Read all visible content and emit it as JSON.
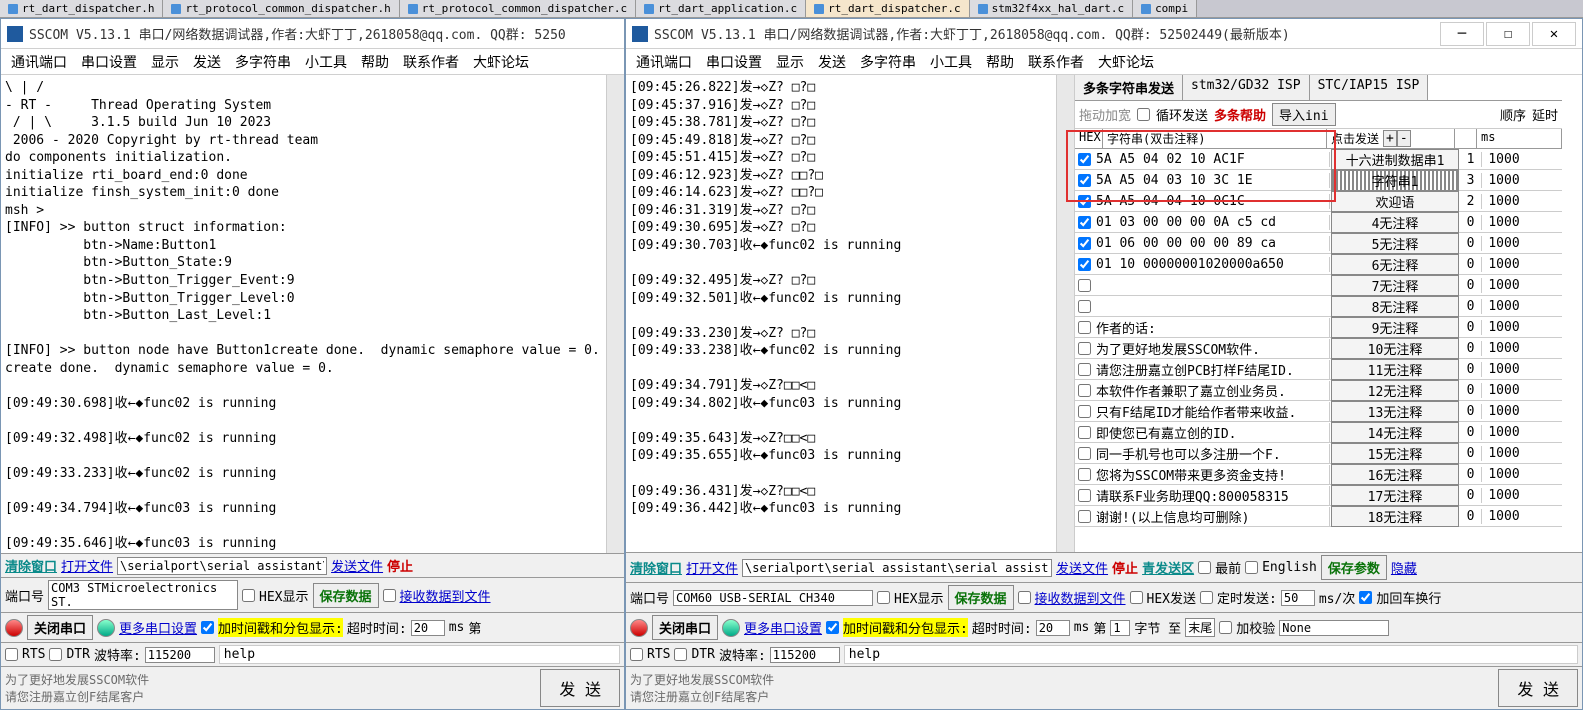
{
  "tabs": [
    "rt_dart_dispatcher.h",
    "rt_protocol_common_dispatcher.h",
    "rt_protocol_common_dispatcher.c",
    "rt_dart_application.c",
    "rt_dart_dispatcher.c",
    "stm32f4xx_hal_dart.c",
    "compi"
  ],
  "tabs_active_idx": 4,
  "win_left": {
    "title": "SSCOM V5.13.1 串口/网络数据调试器,作者:大虾丁丁,2618058@qq.com. QQ群: 5250",
    "menu": [
      "通讯端口",
      "串口设置",
      "显示",
      "发送",
      "多字符串",
      "小工具",
      "帮助",
      "联系作者",
      "大虾论坛"
    ],
    "console": "\\ | /\n- RT -     Thread Operating System\n / | \\     3.1.5 build Jun 10 2023\n 2006 - 2020 Copyright by rt-thread team\ndo components initialization.\ninitialize rti_board_end:0 done\ninitialize finsh_system_init:0 done\nmsh >\n[INFO] >> button struct information:\n          btn->Name:Button1\n          btn->Button_State:9\n          btn->Button_Trigger_Event:9\n          btn->Button_Trigger_Level:0\n          btn->Button_Last_Level:1\n\n[INFO] >> button node have Button1create done.  dynamic semaphore value = 0.\ncreate done.  dynamic semaphore value = 0.\n\n[09:49:30.698]收←◆func02 is running\n\n[09:49:32.498]收←◆func02 is running\n\n[09:49:33.233]收←◆func02 is running\n\n[09:49:34.794]收←◆func03 is running\n\n[09:49:35.646]收←◆func03 is running\n\n[09:49:36.436]收←◆func03 is running",
    "clear": "清除窗口",
    "open": "打开文件",
    "path": "\\serialport\\serial assistant\\serial assist",
    "sendfile": "发送文件",
    "stop": "停止",
    "port_lbl": "端口号",
    "port_val": "COM3 STMicroelectronics ST.",
    "hex_disp": "HEX显示",
    "save_data": "保存数据",
    "recv_file": "接收数据到文件",
    "close_port": "关闭串口",
    "more_port": "更多串口设置",
    "timestamp": "加时间戳和分包显示:",
    "timeout_lbl": "超时时间:",
    "timeout": "20",
    "ms": "ms",
    "unit": "第",
    "help": "help",
    "rts": "RTS",
    "dtr": "DTR",
    "baud_lbl": "波特率:",
    "baud": "115200",
    "footer1": "为了更好地发展SSCOM软件",
    "footer2": "请您注册嘉立创F结尾客户",
    "send": "发  送"
  },
  "win_right": {
    "title": "SSCOM V5.13.1 串口/网络数据调试器,作者:大虾丁丁,2618058@qq.com. QQ群: 52502449(最新版本)",
    "menu": [
      "通讯端口",
      "串口设置",
      "显示",
      "发送",
      "多字符串",
      "小工具",
      "帮助",
      "联系作者",
      "大虾论坛"
    ],
    "console": "[09:45:26.822]发→◇Z? □?□\n[09:45:37.916]发→◇Z? □?□\n[09:45:38.781]发→◇Z? □?□\n[09:45:49.818]发→◇Z? □?□\n[09:45:51.415]发→◇Z? □?□\n[09:46:12.923]发→◇Z? □□?□\n[09:46:14.623]发→◇Z? □□?□\n[09:46:31.319]发→◇Z? □?□\n[09:49:30.695]发→◇Z? □?□\n[09:49:30.703]收←◆func02 is running\n\n[09:49:32.495]发→◇Z? □?□\n[09:49:32.501]收←◆func02 is running\n\n[09:49:33.230]发→◇Z? □?□\n[09:49:33.238]收←◆func02 is running\n\n[09:49:34.791]发→◇Z?□□<□\n[09:49:34.802]收←◆func03 is running\n\n[09:49:35.643]发→◇Z?□□<□\n[09:49:35.655]收←◆func03 is running\n\n[09:49:36.431]发→◇Z?□□<□\n[09:49:36.442]收←◆func03 is running",
    "side": {
      "tabs": [
        "多条字符串发送",
        "stm32/GD32 ISP",
        "STC/IAP15 ISP"
      ],
      "drag": "拖动加宽",
      "loop": "循环发送",
      "help": "多条帮助",
      "import": "导入ini",
      "order": "顺序",
      "delay": "延时",
      "hdr_hex": "HEX",
      "hdr_str": "字符串(双击注释)",
      "hdr_click": "点击发送",
      "hdr_ms": "ms",
      "rows": [
        {
          "ck": true,
          "hex": "5A A5 04 02 10  AC1F",
          "note": "十六进制数据串1",
          "seq": "1",
          "ms": "1000"
        },
        {
          "ck": true,
          "hex": "5A A5 04 03 10 3C 1E",
          "note": "字符串1",
          "seq": "3",
          "ms": "1000"
        },
        {
          "ck": true,
          "hex": "5A A5 04 04 10 0C1C",
          "note": "欢迎语",
          "seq": "2",
          "ms": "1000"
        },
        {
          "ck": true,
          "hex": "01 03 00 00 00 0A  c5 cd",
          "note": "4无注释",
          "seq": "0",
          "ms": "1000"
        },
        {
          "ck": true,
          "hex": "01 06 00 00 00 00  89 ca",
          "note": "5无注释",
          "seq": "0",
          "ms": "1000"
        },
        {
          "ck": true,
          "hex": "01 10 00000001020000a650",
          "note": "6无注释",
          "seq": "0",
          "ms": "1000"
        },
        {
          "ck": false,
          "hex": "",
          "note": "7无注释",
          "seq": "0",
          "ms": "1000"
        },
        {
          "ck": false,
          "hex": "",
          "note": "8无注释",
          "seq": "0",
          "ms": "1000"
        },
        {
          "ck": false,
          "hex": "作者的话:",
          "note": "9无注释",
          "seq": "0",
          "ms": "1000"
        },
        {
          "ck": false,
          "hex": "为了更好地发展SSCOM软件.",
          "note": "10无注释",
          "seq": "0",
          "ms": "1000"
        },
        {
          "ck": false,
          "hex": "请您注册嘉立创PCB打样F结尾ID.",
          "note": "11无注释",
          "seq": "0",
          "ms": "1000"
        },
        {
          "ck": false,
          "hex": "本软件作者兼职了嘉立创业务员.",
          "note": "12无注释",
          "seq": "0",
          "ms": "1000"
        },
        {
          "ck": false,
          "hex": "只有F结尾ID才能给作者带来收益.",
          "note": "13无注释",
          "seq": "0",
          "ms": "1000"
        },
        {
          "ck": false,
          "hex": "即使您已有嘉立创的ID.",
          "note": "14无注释",
          "seq": "0",
          "ms": "1000"
        },
        {
          "ck": false,
          "hex": "同一手机号也可以多注册一个F.",
          "note": "15无注释",
          "seq": "0",
          "ms": "1000"
        },
        {
          "ck": false,
          "hex": "您将为SSCOM带来更多资金支持!",
          "note": "16无注释",
          "seq": "0",
          "ms": "1000"
        },
        {
          "ck": false,
          "hex": "请联系F业务助理QQ:800058315",
          "note": "17无注释",
          "seq": "0",
          "ms": "1000"
        },
        {
          "ck": false,
          "hex": "谢谢!(以上信息均可删除)",
          "note": "18无注释",
          "seq": "0",
          "ms": "1000"
        }
      ]
    },
    "clear": "清除窗口",
    "open": "打开文件",
    "path": "\\serialport\\serial assistant\\serial assist",
    "sendfile": "发送文件",
    "stop": "停止",
    "sendarea": "青发送区",
    "top": "最前",
    "english": "English",
    "save_param": "保存参数",
    "hide": "隐藏",
    "port_lbl": "端口号",
    "port_val": "COM60 USB-SERIAL CH340",
    "hex_disp": "HEX显示",
    "save_data": "保存数据",
    "recv_file": "接收数据到文件",
    "hex_send": "HEX发送",
    "timed_send": "定时发送:",
    "timed_val": "50",
    "msc": "ms/次",
    "cr": "加回车换行",
    "close_port": "关闭串口",
    "more_port": "更多串口设置",
    "timestamp": "加时间戳和分包显示:",
    "timeout_lbl": "超时时间:",
    "timeout": "20",
    "ms": "ms",
    "byte_lbl": "第",
    "byte_val": "1",
    "byte_unit": "字节 至",
    "tail": "末尾",
    "checksum": "加校验",
    "none": "None",
    "help": "help",
    "rts": "RTS",
    "dtr": "DTR",
    "baud_lbl": "波特率:",
    "baud": "115200",
    "footer1": "为了更好地发展SSCOM软件",
    "footer2": "请您注册嘉立创F结尾客户",
    "send": "发  送"
  }
}
